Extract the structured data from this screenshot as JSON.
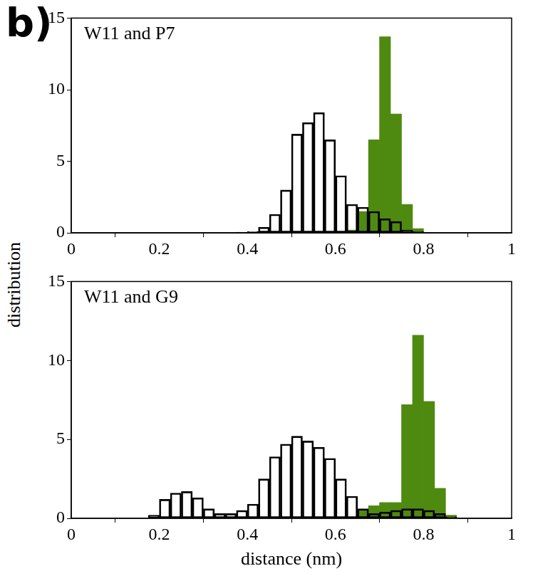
{
  "figure": {
    "panel_label": "b)",
    "ylabel": "distribution"
  },
  "chart_data": [
    {
      "type": "histogram",
      "title": "W11 and P7",
      "bins": [
        0,
        0.025,
        0.05,
        0.075,
        0.1,
        0.125,
        0.15,
        0.175,
        0.2,
        0.225,
        0.25,
        0.275,
        0.3,
        0.325,
        0.35,
        0.375,
        0.4,
        0.425,
        0.45,
        0.475,
        0.5,
        0.525,
        0.55,
        0.575,
        0.6,
        0.625,
        0.65,
        0.675,
        0.7,
        0.725,
        0.75,
        0.775,
        0.8,
        0.825,
        0.85,
        0.875,
        0.9,
        0.925,
        0.95,
        0.975,
        1
      ],
      "series": [
        {
          "color": "#000000",
          "marker": "outline",
          "values": [
            0,
            0,
            0,
            0,
            0,
            0,
            0,
            0,
            0,
            0,
            0,
            0,
            0,
            0,
            0,
            0.05,
            0.1,
            0.4,
            1.3,
            3.0,
            6.9,
            7.7,
            8.4,
            6.5,
            4.0,
            2.0,
            1.8,
            1.5,
            1.0,
            0.8,
            0.2,
            0.1,
            0,
            0,
            0,
            0,
            0,
            0,
            0,
            0
          ]
        },
        {
          "color": "#4f8a10",
          "marker": "filled",
          "values": [
            0,
            0,
            0,
            0,
            0,
            0,
            0,
            0,
            0,
            0,
            0,
            0,
            0,
            0,
            0,
            0,
            0,
            0,
            0,
            0,
            0,
            0,
            0,
            0,
            0,
            0.2,
            1.5,
            6.5,
            13.7,
            8.3,
            2.0,
            0.3,
            0,
            0,
            0,
            0,
            0,
            0,
            0,
            0
          ]
        }
      ],
      "xlim": [
        0,
        1
      ],
      "xticks": [
        0,
        0.2,
        0.4,
        0.6,
        0.8,
        1
      ],
      "ylim": [
        0,
        15
      ],
      "yticks": [
        0,
        5,
        10,
        15
      ],
      "grid": false
    },
    {
      "type": "histogram",
      "title": "W11 and G9",
      "xlabel": "distance (nm)",
      "bins": [
        0,
        0.025,
        0.05,
        0.075,
        0.1,
        0.125,
        0.15,
        0.175,
        0.2,
        0.225,
        0.25,
        0.275,
        0.3,
        0.325,
        0.35,
        0.375,
        0.4,
        0.425,
        0.45,
        0.475,
        0.5,
        0.525,
        0.55,
        0.575,
        0.6,
        0.625,
        0.65,
        0.675,
        0.7,
        0.725,
        0.75,
        0.775,
        0.8,
        0.825,
        0.85,
        0.875,
        0.9,
        0.925,
        0.95,
        0.975,
        1
      ],
      "series": [
        {
          "color": "#000000",
          "marker": "outline",
          "values": [
            0,
            0,
            0,
            0,
            0,
            0,
            0,
            0.2,
            1.2,
            1.6,
            1.7,
            1.3,
            0.6,
            0.3,
            0.3,
            0.5,
            0.9,
            2.5,
            3.9,
            4.7,
            5.2,
            4.9,
            4.5,
            3.8,
            2.5,
            1.4,
            0.6,
            0.3,
            0.4,
            0.5,
            0.6,
            0.6,
            0.5,
            0.3,
            0.1,
            0,
            0,
            0,
            0,
            0
          ]
        },
        {
          "color": "#4f8a10",
          "marker": "filled",
          "values": [
            0,
            0,
            0,
            0,
            0,
            0,
            0,
            0,
            0,
            0,
            0,
            0,
            0,
            0,
            0,
            0,
            0,
            0,
            0,
            0,
            0,
            0,
            0,
            0,
            0,
            0,
            0.5,
            0.8,
            1.0,
            1.0,
            7.2,
            11.6,
            7.4,
            1.9,
            0.2,
            0,
            0,
            0,
            0,
            0
          ]
        }
      ],
      "xlim": [
        0,
        1
      ],
      "xticks": [
        0,
        0.2,
        0.4,
        0.6,
        0.8,
        1
      ],
      "ylim": [
        0,
        15
      ],
      "yticks": [
        0,
        5,
        10,
        15
      ],
      "grid": false
    }
  ]
}
